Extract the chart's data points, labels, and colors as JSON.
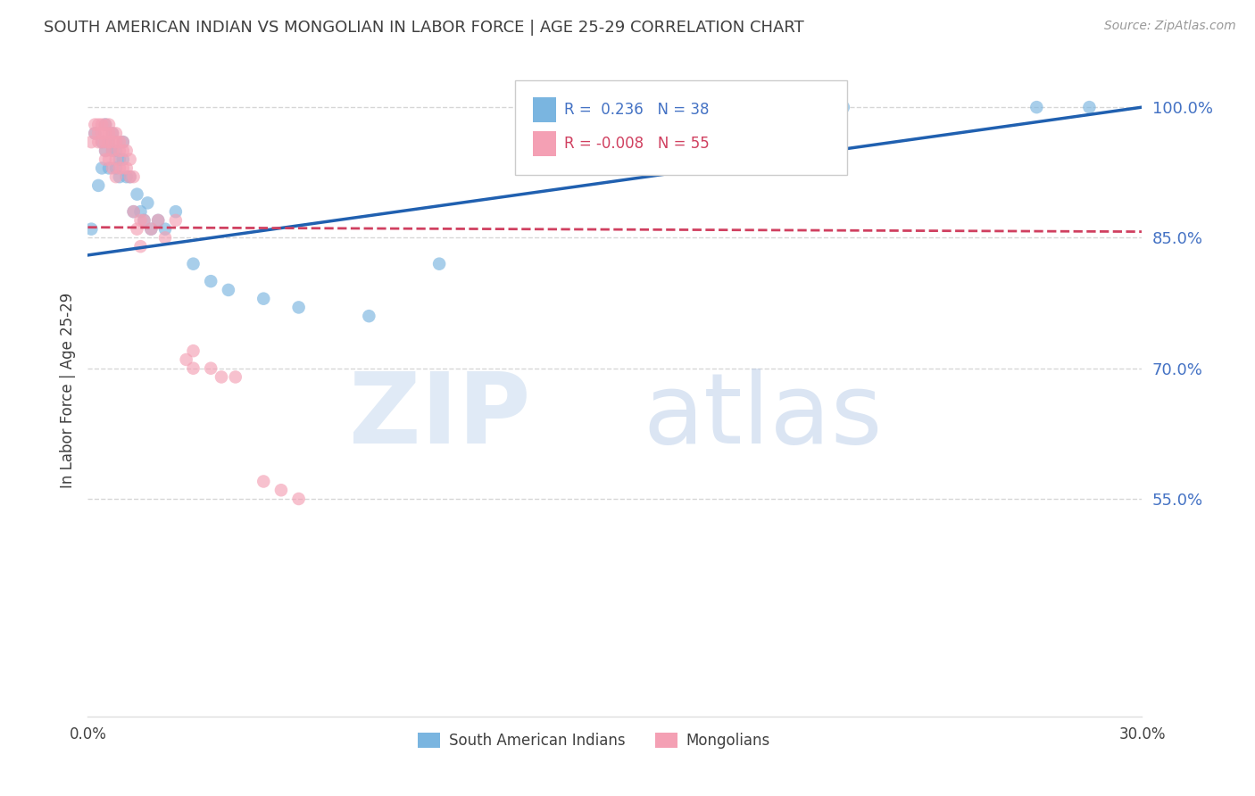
{
  "title": "SOUTH AMERICAN INDIAN VS MONGOLIAN IN LABOR FORCE | AGE 25-29 CORRELATION CHART",
  "source": "Source: ZipAtlas.com",
  "ylabel": "In Labor Force | Age 25-29",
  "xlim": [
    0.0,
    0.3
  ],
  "ylim": [
    0.3,
    1.05
  ],
  "blue_R": 0.236,
  "blue_N": 38,
  "pink_R": -0.008,
  "pink_N": 55,
  "blue_color": "#7ab5e0",
  "pink_color": "#f4a0b4",
  "blue_line_color": "#2060b0",
  "pink_line_color": "#d04060",
  "grid_color": "#cccccc",
  "axis_color": "#4472c4",
  "title_color": "#404040",
  "blue_scatter_x": [
    0.001,
    0.002,
    0.003,
    0.004,
    0.004,
    0.005,
    0.005,
    0.006,
    0.006,
    0.007,
    0.007,
    0.008,
    0.008,
    0.009,
    0.009,
    0.01,
    0.01,
    0.011,
    0.012,
    0.013,
    0.014,
    0.015,
    0.016,
    0.017,
    0.018,
    0.02,
    0.022,
    0.025,
    0.03,
    0.035,
    0.04,
    0.05,
    0.06,
    0.08,
    0.1,
    0.215,
    0.27,
    0.285
  ],
  "blue_scatter_y": [
    0.86,
    0.97,
    0.91,
    0.96,
    0.93,
    0.98,
    0.95,
    0.96,
    0.93,
    0.97,
    0.95,
    0.95,
    0.93,
    0.94,
    0.92,
    0.96,
    0.94,
    0.92,
    0.92,
    0.88,
    0.9,
    0.88,
    0.87,
    0.89,
    0.86,
    0.87,
    0.86,
    0.88,
    0.82,
    0.8,
    0.79,
    0.78,
    0.77,
    0.76,
    0.82,
    1.0,
    1.0,
    1.0
  ],
  "pink_scatter_x": [
    0.001,
    0.002,
    0.002,
    0.003,
    0.003,
    0.003,
    0.004,
    0.004,
    0.004,
    0.005,
    0.005,
    0.005,
    0.005,
    0.005,
    0.006,
    0.006,
    0.006,
    0.006,
    0.007,
    0.007,
    0.007,
    0.007,
    0.008,
    0.008,
    0.008,
    0.008,
    0.009,
    0.009,
    0.009,
    0.01,
    0.01,
    0.01,
    0.011,
    0.011,
    0.012,
    0.012,
    0.013,
    0.013,
    0.014,
    0.015,
    0.015,
    0.016,
    0.018,
    0.02,
    0.022,
    0.025,
    0.028,
    0.03,
    0.03,
    0.035,
    0.038,
    0.042,
    0.05,
    0.055,
    0.06
  ],
  "pink_scatter_y": [
    0.96,
    0.98,
    0.97,
    0.98,
    0.97,
    0.96,
    0.98,
    0.97,
    0.96,
    0.98,
    0.97,
    0.96,
    0.95,
    0.94,
    0.98,
    0.97,
    0.96,
    0.94,
    0.97,
    0.96,
    0.95,
    0.93,
    0.97,
    0.96,
    0.94,
    0.92,
    0.96,
    0.95,
    0.93,
    0.96,
    0.95,
    0.93,
    0.95,
    0.93,
    0.94,
    0.92,
    0.92,
    0.88,
    0.86,
    0.87,
    0.84,
    0.87,
    0.86,
    0.87,
    0.85,
    0.87,
    0.71,
    0.72,
    0.7,
    0.7,
    0.69,
    0.69,
    0.57,
    0.56,
    0.55
  ],
  "blue_line_x0": 0.0,
  "blue_line_y0": 0.83,
  "blue_line_x1": 0.3,
  "blue_line_y1": 1.0,
  "pink_line_x0": 0.0,
  "pink_line_y0": 0.862,
  "pink_line_x1": 0.3,
  "pink_line_y1": 0.857,
  "ytick_vals": [
    0.55,
    0.7,
    0.85,
    1.0
  ],
  "ytick_labels": [
    "55.0%",
    "70.0%",
    "85.0%",
    "100.0%"
  ]
}
